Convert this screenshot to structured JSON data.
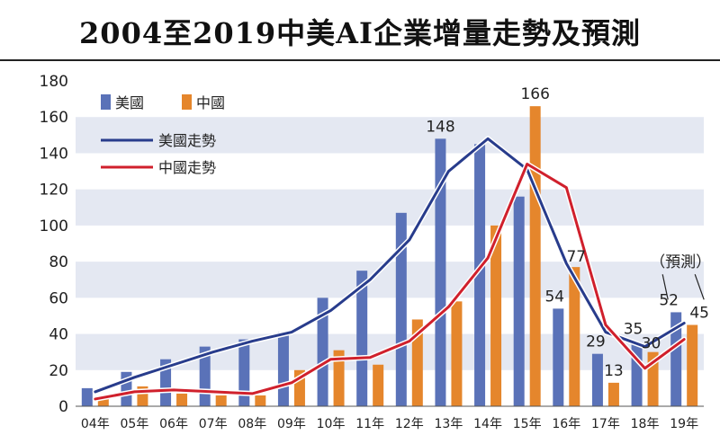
{
  "title": "2004至2019中美AI企業增量走勢及預測",
  "colors": {
    "us_bar": "#5a72b8",
    "cn_bar": "#e5862c",
    "us_line": "#283c8c",
    "cn_line": "#d0202c",
    "band": "#e4e8f2"
  },
  "chart_data": {
    "type": "bar",
    "title": "2004至2019中美AI企業增量走勢及預測",
    "categories": [
      "04年",
      "05年",
      "06年",
      "07年",
      "08年",
      "09年",
      "10年",
      "11年",
      "12年",
      "13年",
      "14年",
      "15年",
      "16年",
      "17年",
      "18年",
      "19年"
    ],
    "ylim": [
      0,
      180
    ],
    "yticks": [
      0,
      20,
      40,
      60,
      80,
      100,
      120,
      140,
      160,
      180
    ],
    "grid": "alternating horizontal bands",
    "legend_position": "top-left",
    "series": [
      {
        "name": "美國",
        "kind": "bar",
        "values": [
          10,
          19,
          26,
          33,
          37,
          41,
          60,
          75,
          107,
          148,
          145,
          116,
          54,
          29,
          35,
          52
        ]
      },
      {
        "name": "中國",
        "kind": "bar",
        "values": [
          4,
          11,
          7,
          6,
          6,
          20,
          31,
          23,
          48,
          58,
          100,
          166,
          77,
          13,
          30,
          45
        ]
      },
      {
        "name": "美國走勢",
        "kind": "line",
        "values": [
          8,
          16,
          23,
          30,
          36,
          41,
          53,
          70,
          92,
          130,
          148,
          131,
          79,
          41,
          33,
          46
        ]
      },
      {
        "name": "中國走勢",
        "kind": "line",
        "values": [
          4,
          8,
          9,
          8,
          7,
          13,
          26,
          27,
          36,
          55,
          82,
          134,
          121,
          45,
          21,
          37
        ]
      }
    ],
    "data_labels": [
      {
        "series": "美國",
        "category": "13年",
        "text": "148"
      },
      {
        "series": "中國",
        "category": "15年",
        "text": "166"
      },
      {
        "series": "中國",
        "category": "16年",
        "text": "77"
      },
      {
        "series": "美國",
        "category": "16年",
        "text": "54"
      },
      {
        "series": "美國",
        "category": "17年",
        "text": "29"
      },
      {
        "series": "中國",
        "category": "17年",
        "text": "13"
      },
      {
        "series": "美國",
        "category": "18年",
        "text": "35"
      },
      {
        "series": "中國",
        "category": "18年",
        "text": "30"
      },
      {
        "series": "美國",
        "category": "19年",
        "text": "52"
      },
      {
        "series": "中國",
        "category": "19年",
        "text": "45"
      }
    ],
    "annotation": "（預測）"
  }
}
